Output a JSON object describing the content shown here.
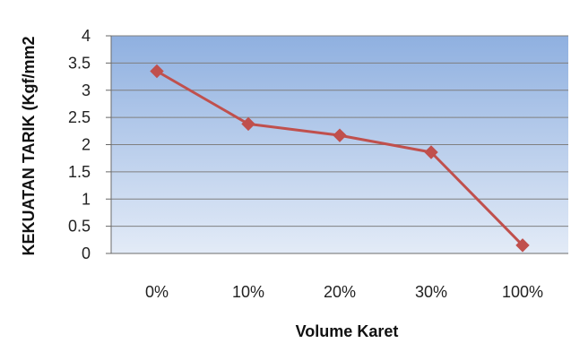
{
  "chart_data": {
    "type": "line",
    "title": "",
    "xlabel": "Volume Karet",
    "ylabel": "KEKUATAN TARIK (Kgf/mm2",
    "categories": [
      "0%",
      "10%",
      "20%",
      "30%",
      "100%"
    ],
    "series": [
      {
        "values": [
          3.35,
          2.38,
          2.17,
          1.86,
          0.15
        ],
        "color": "#c0504d",
        "marker": "diamond"
      }
    ],
    "ylim": [
      0,
      4
    ],
    "yticks": [
      {
        "value": 0,
        "label": "0"
      },
      {
        "value": 0.5,
        "label": "0.5"
      },
      {
        "value": 1,
        "label": "1"
      },
      {
        "value": 1.5,
        "label": "1.5"
      },
      {
        "value": 2,
        "label": "2"
      },
      {
        "value": 2.5,
        "label": "2.5"
      },
      {
        "value": 3,
        "label": "3"
      },
      {
        "value": 3.5,
        "label": "3.5"
      },
      {
        "value": 4,
        "label": "4"
      }
    ],
    "grid": true,
    "legend": "none",
    "plot_background": {
      "top_color": "#8fb0e0",
      "bottom_color": "#e3ebf7"
    },
    "gridline_color": "#7f7f7f"
  }
}
